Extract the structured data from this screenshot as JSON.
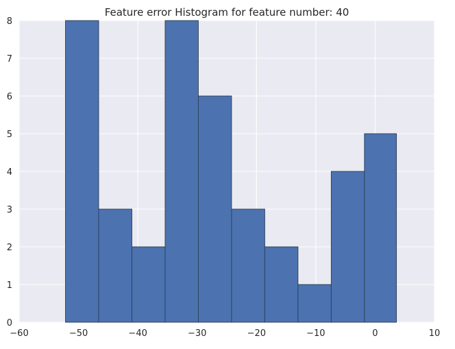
{
  "chart_data": {
    "type": "bar",
    "title": "Feature error Histogram for feature number: 40",
    "xlabel": "",
    "ylabel": "",
    "xlim": [
      -60,
      10
    ],
    "ylim": [
      0,
      8
    ],
    "x_ticks": [
      -60,
      -50,
      -40,
      -30,
      -20,
      -10,
      0,
      10
    ],
    "y_ticks": [
      0,
      1,
      2,
      3,
      4,
      5,
      6,
      7,
      8
    ],
    "grid": true,
    "bin_edges": [
      -52.2,
      -46.6,
      -41.0,
      -35.4,
      -29.8,
      -24.2,
      -18.6,
      -13.0,
      -7.4,
      -1.8,
      3.6
    ],
    "values": [
      8,
      3,
      2,
      8,
      6,
      3,
      2,
      1,
      4,
      5
    ],
    "colors": {
      "bar": "#4c72b0",
      "bar_edge": "#2c3e55",
      "background": "#eaeaf2",
      "grid": "#ffffff"
    }
  }
}
